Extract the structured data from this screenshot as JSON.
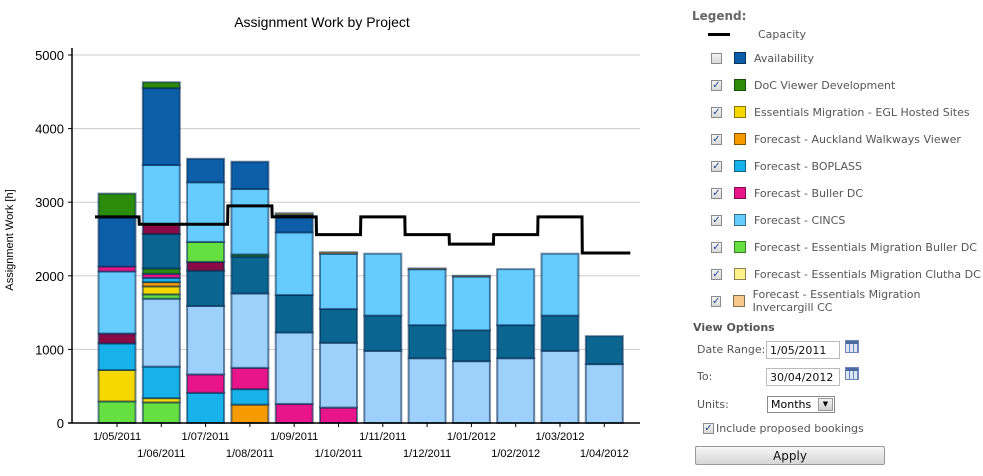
{
  "chart_data": {
    "type": "bar",
    "stacked": true,
    "title": "Assignment Work by Project",
    "ylabel": "Assignment Work [h]",
    "xlabel": "",
    "ylim": [
      0,
      5000
    ],
    "yticks": [
      "0",
      "1000",
      "2000",
      "3000",
      "4000",
      "5000"
    ],
    "grid": true,
    "categories": [
      "1/05/2011",
      "1/06/2011",
      "1/07/2011",
      "1/08/2011",
      "1/09/2011",
      "1/10/2011",
      "1/11/2011",
      "1/12/2011",
      "1/01/2012",
      "1/02/2012",
      "1/03/2012",
      "1/04/2012"
    ],
    "series": [
      {
        "name": "Capacity",
        "color": "#000000",
        "type": "line"
      },
      {
        "name": "Availability",
        "color": "#0d5ea8",
        "checked": false
      },
      {
        "name": "DoC Viewer Development",
        "color": "#2a8c0a",
        "checked": true
      },
      {
        "name": "Essentials Migration - EGL Hosted Sites",
        "color": "#f5d800",
        "checked": true
      },
      {
        "name": "Forecast - Auckland Walkways Viewer",
        "color": "#f59a00",
        "checked": true
      },
      {
        "name": "Forecast - BOPLASS",
        "color": "#18b2ea",
        "checked": true
      },
      {
        "name": "Forecast - Buller DC",
        "color": "#e8158a",
        "checked": true
      },
      {
        "name": "Forecast - CINCS",
        "color": "#66ccff",
        "checked": true
      },
      {
        "name": "Forecast - Essentials Migration Buller DC",
        "color": "#66e040",
        "checked": true
      },
      {
        "name": "Forecast - Essentials Migration Clutha DC",
        "color": "#fff08a",
        "checked": true
      },
      {
        "name": "Forecast - Essentials Migration Invercargill CC",
        "color": "#f7c98a",
        "checked": true
      },
      {
        "name": "",
        "color": "#9dd0fb"
      },
      {
        "name": "",
        "color": "#0a6690"
      },
      {
        "name": "",
        "color": "#8a0a45"
      }
    ],
    "capacity": [
      2800,
      2700,
      2700,
      2950,
      2800,
      2560,
      2800,
      2560,
      2430,
      2560,
      2800,
      2310
    ],
    "stacks": [
      [
        [
          8,
          293
        ],
        [
          3,
          427
        ],
        [
          5,
          361
        ],
        [
          13,
          135
        ],
        [
          7,
          843
        ],
        [
          6,
          67
        ],
        [
          1,
          667
        ],
        [
          2,
          324
        ]
      ],
      [
        [
          8,
          280
        ],
        [
          3,
          58
        ],
        [
          5,
          428
        ],
        [
          11,
          923
        ],
        [
          8,
          59
        ],
        [
          3,
          108
        ],
        [
          4,
          58
        ],
        [
          5,
          59
        ],
        [
          6,
          54
        ],
        [
          2,
          73
        ],
        [
          12,
          468
        ],
        [
          13,
          135
        ],
        [
          7,
          802
        ],
        [
          1,
          1045
        ],
        [
          2,
          80
        ]
      ],
      [
        [
          5,
          410
        ],
        [
          6,
          250
        ],
        [
          11,
          930
        ],
        [
          12,
          480
        ],
        [
          13,
          120
        ],
        [
          8,
          270
        ],
        [
          7,
          810
        ],
        [
          1,
          320
        ]
      ],
      [
        [
          4,
          250
        ],
        [
          5,
          210
        ],
        [
          6,
          290
        ],
        [
          11,
          1010
        ],
        [
          12,
          500
        ],
        [
          2,
          30
        ],
        [
          7,
          890
        ],
        [
          1,
          370
        ]
      ],
      [
        [
          6,
          260
        ],
        [
          11,
          970
        ],
        [
          12,
          510
        ],
        [
          7,
          850
        ],
        [
          1,
          240
        ],
        [
          4,
          20
        ]
      ],
      [
        [
          6,
          210
        ],
        [
          11,
          880
        ],
        [
          12,
          460
        ],
        [
          7,
          750
        ],
        [
          4,
          20
        ]
      ],
      [
        [
          11,
          980
        ],
        [
          12,
          480
        ],
        [
          7,
          840
        ]
      ],
      [
        [
          11,
          880
        ],
        [
          12,
          450
        ],
        [
          7,
          760
        ],
        [
          4,
          10
        ]
      ],
      [
        [
          11,
          840
        ],
        [
          12,
          420
        ],
        [
          7,
          730
        ],
        [
          4,
          10
        ]
      ],
      [
        [
          11,
          880
        ],
        [
          12,
          450
        ],
        [
          7,
          760
        ]
      ],
      [
        [
          11,
          980
        ],
        [
          12,
          480
        ],
        [
          7,
          840
        ]
      ],
      [
        [
          11,
          800
        ],
        [
          12,
          380
        ]
      ]
    ]
  },
  "legend": {
    "title": "Legend:"
  },
  "view_options": {
    "title": "View Options",
    "date_range_label": "Date Range:",
    "date_from": "1/05/2011",
    "to_label": "To:",
    "date_to": "30/04/2012",
    "units_label": "Units:",
    "units_value": "Months",
    "include_proposed_label": "Include proposed bookings",
    "include_proposed_checked": true,
    "apply_label": "Apply"
  }
}
